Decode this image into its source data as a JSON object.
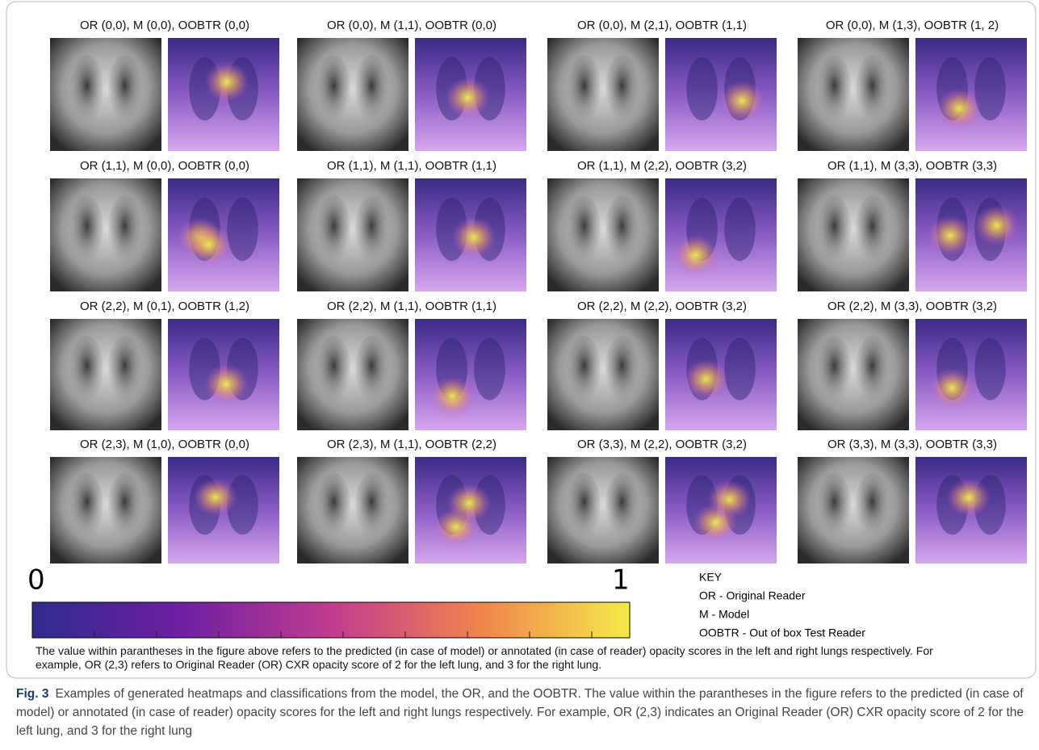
{
  "panels": [
    {
      "label": "OR (0,0), M (0,0), OOBTR (0,0)"
    },
    {
      "label": "OR (0,0), M (1,1), OOBTR (0,0)"
    },
    {
      "label": "OR (0,0), M (2,1), OOBTR (1,1)"
    },
    {
      "label": "OR (0,0), M (1,3), OOBTR (1, 2)"
    },
    {
      "label": "OR (1,1), M (0,0), OOBTR (0,0)"
    },
    {
      "label": "OR (1,1), M (1,1), OOBTR (1,1)"
    },
    {
      "label": "OR (1,1), M (2,2), OOBTR (3,2)"
    },
    {
      "label": "OR (1,1), M (3,3), OOBTR (3,3)"
    },
    {
      "label": "OR (2,2), M (0,1), OOBTR (1,2)"
    },
    {
      "label": "OR (2,2), M (1,1), OOBTR (1,1)"
    },
    {
      "label": "OR (2,2), M (2,2), OOBTR (3,2)"
    },
    {
      "label": "OR (2,2), M (3,3), OOBTR (3,2)"
    },
    {
      "label": "OR (2,3), M (1,0), OOBTR (0,0)"
    },
    {
      "label": "OR (2,3), M (1,1), OOBTR (2,2)"
    },
    {
      "label": "OR (3,3), M (2,2), OOBTR (3,2)"
    },
    {
      "label": "OR (3,3), M (3,3), OOBTR (3,3)"
    }
  ],
  "colorbar": {
    "min_label": "0",
    "max_label": "1"
  },
  "key": {
    "title": "KEY",
    "items": [
      "OR - Original Reader",
      "M - Model",
      "OOBTR - Out of box Test Reader"
    ]
  },
  "note": "The value within parantheses in the figure above refers to the predicted (in case of model) or annotated (in case of reader) opacity scores in the left and right lungs respectively. For example, OR (2,3) refers to Original Reader (OR) CXR opacity score of 2 for the left lung, and 3 for the right lung.",
  "caption": {
    "label": "Fig. 3",
    "text": "Examples of generated heatmaps and classifications from the model, the OR, and the OOBTR. The value within the parantheses in the figure refers to the predicted (in case of model) or annotated (in case of reader) opacity scores for the left and right lungs respectively. For example, OR (2,3) indicates an Original Reader (OR) CXR opacity score of 2 for the left lung, and 3 for the right lung"
  }
}
